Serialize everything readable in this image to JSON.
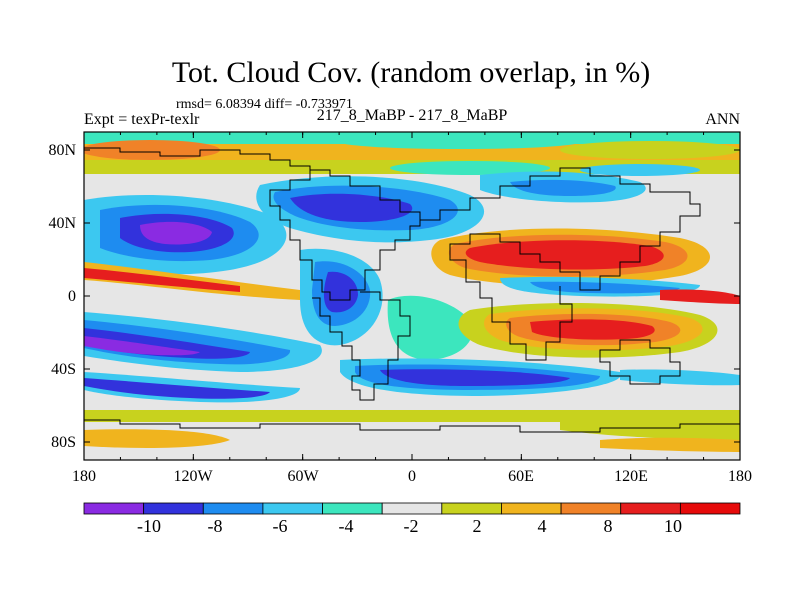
{
  "title": "Tot. Cloud Cov. (random overlap, in %)",
  "stats": "rmsd= 6.08394 diff= -0.733971",
  "left_label": "Expt = texPr-texlr",
  "center_label": "217_8_MaBP - 217_8_MaBP",
  "right_label": "ANN",
  "lon_ticks": [
    "180",
    "120W",
    "60W",
    "0",
    "60E",
    "120E",
    "180"
  ],
  "lat_ticks": [
    "80N",
    "40N",
    "0",
    "40S",
    "80S"
  ],
  "colorbar": {
    "labels": [
      "-10",
      "-8",
      "-6",
      "-4",
      "-2",
      "2",
      "4",
      "8",
      "10"
    ],
    "colors": [
      "#8a2be2",
      "#3232dc",
      "#1e8cf0",
      "#3cc8f0",
      "#3ce6be",
      "#e6e6e6",
      "#c8d21e",
      "#f0b41e",
      "#f08228",
      "#e61e1e",
      "#e60a0a"
    ]
  }
}
